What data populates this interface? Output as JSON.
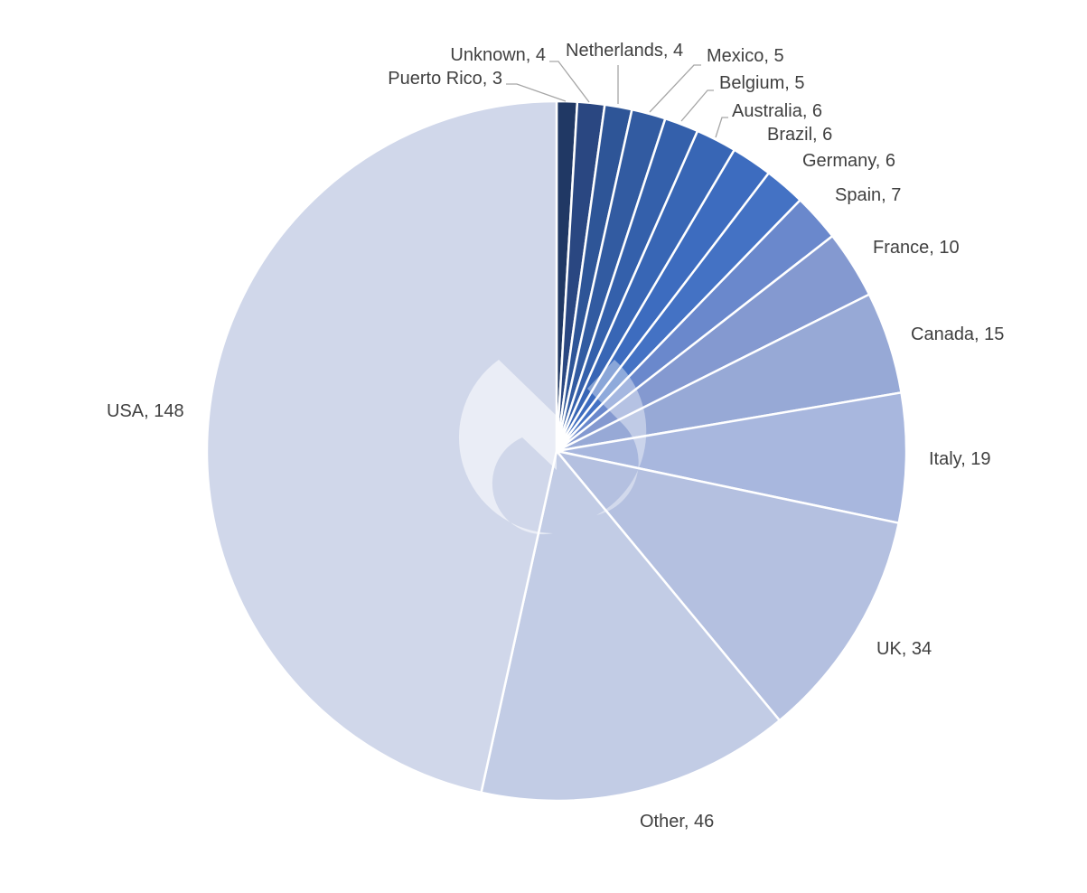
{
  "chart_data": {
    "type": "pie",
    "start": "12 o'clock",
    "direction": "clockwise",
    "slices": [
      {
        "category": "Puerto Rico",
        "value": 3,
        "label": "Puerto Rico, 3",
        "color": "#203864"
      },
      {
        "category": "Unknown",
        "value": 4,
        "label": "Unknown, 4",
        "color": "#2a4781"
      },
      {
        "category": "Netherlands",
        "value": 4,
        "label": "Netherlands, 4",
        "color": "#2e5597"
      },
      {
        "category": "Mexico",
        "value": 5,
        "label": "Mexico, 5",
        "color": "#325ba1"
      },
      {
        "category": "Belgium",
        "value": 5,
        "label": "Belgium, 5",
        "color": "#3460ab"
      },
      {
        "category": "Australia",
        "value": 6,
        "label": "Australia, 6",
        "color": "#3866b5"
      },
      {
        "category": "Brazil",
        "value": 6,
        "label": "Brazil, 6",
        "color": "#3d6cbf"
      },
      {
        "category": "Germany",
        "value": 6,
        "label": "Germany, 6",
        "color": "#4472c4"
      },
      {
        "category": "Spain",
        "value": 7,
        "label": "Spain, 7",
        "color": "#6a88cc"
      },
      {
        "category": "France",
        "value": 10,
        "label": "France, 10",
        "color": "#8499d0"
      },
      {
        "category": "Canada",
        "value": 15,
        "label": "Canada, 15",
        "color": "#97a9d6"
      },
      {
        "category": "Italy",
        "value": 19,
        "label": "Italy, 19",
        "color": "#a8b7de"
      },
      {
        "category": "UK",
        "value": 34,
        "label": "UK, 34",
        "color": "#b4c0e0"
      },
      {
        "category": "Other",
        "value": 46,
        "label": "Other, 46",
        "color": "#c2cce5"
      },
      {
        "category": "USA",
        "value": 148,
        "label": "USA, 148",
        "color": "#d0d7ea"
      }
    ],
    "slice_border_color": "#ffffff",
    "leader_line_color": "#a6a6a6",
    "label_color": "#404040"
  }
}
